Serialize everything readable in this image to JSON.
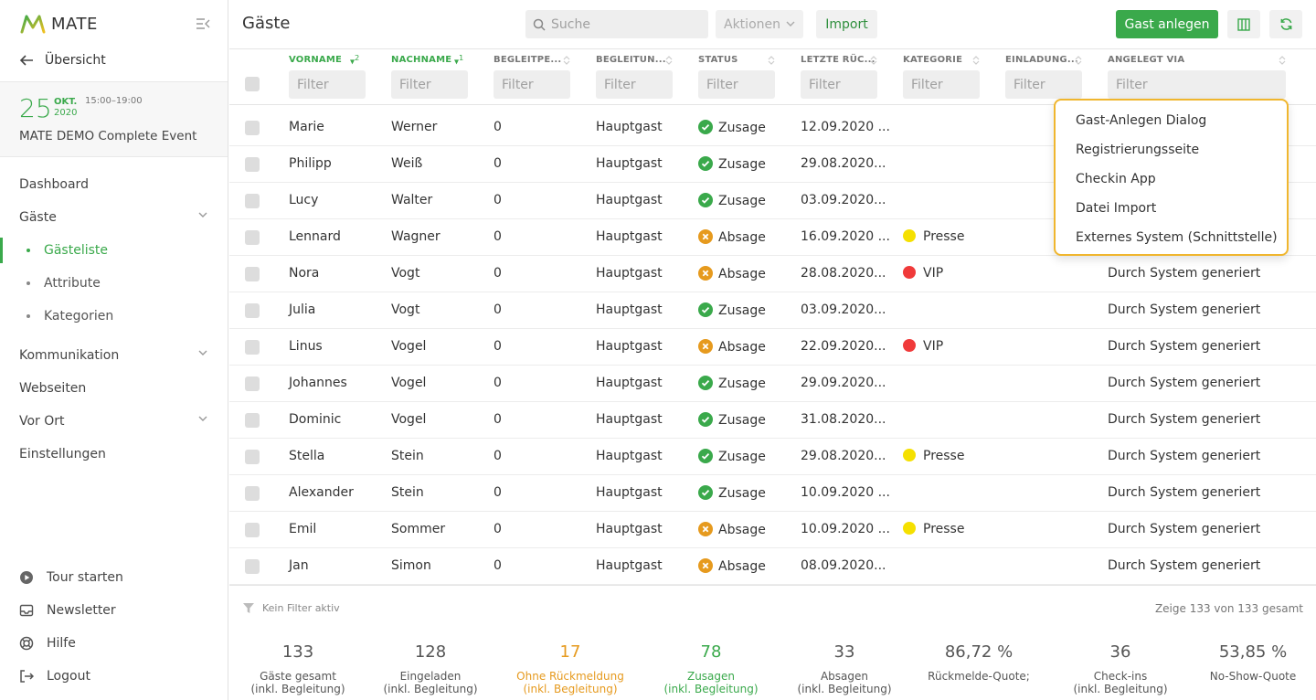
{
  "sidebar": {
    "brand": "MATE",
    "back_label": "Übersicht",
    "event": {
      "day": "25",
      "month": "OKT.",
      "year": "2020",
      "time": "15:00–19:00",
      "name": "MATE DEMO Complete Event"
    },
    "nav": {
      "dashboard": "Dashboard",
      "guests": "Gäste",
      "guestlist": "Gästeliste",
      "attributes": "Attribute",
      "categories": "Kategorien",
      "communication": "Kommunikation",
      "websites": "Webseiten",
      "onsite": "Vor Ort",
      "settings": "Einstellungen"
    },
    "bottom": {
      "tour": "Tour starten",
      "newsletter": "Newsletter",
      "help": "Hilfe",
      "logout": "Logout"
    }
  },
  "topbar": {
    "title": "Gäste",
    "search_placeholder": "Suche",
    "actions_label": "Aktionen",
    "import_label": "Import",
    "add_guest_label": "Gast anlegen"
  },
  "table": {
    "filter_placeholder": "Filter",
    "columns": {
      "firstname": "VORNAME",
      "firstname_sort": "2",
      "lastname": "NACHNAME",
      "lastname_sort": "1",
      "companions": "BEGLEITPE...",
      "companion_type": "BEGLEITUN...",
      "status": "STATUS",
      "last_response": "LETZTE RÜC...",
      "category": "KATEGORIE",
      "invitation": "EINLADUNG...",
      "created_via": "ANGELEGT VIA"
    },
    "rows": [
      {
        "first": "Marie",
        "last": "Werner",
        "companions": "0",
        "type": "Hauptgast",
        "status": "Zusage",
        "status_kind": "yes",
        "date": "12.09.2020 ...",
        "category": "",
        "cat_color": "",
        "via": ""
      },
      {
        "first": "Philipp",
        "last": "Weiß",
        "companions": "0",
        "type": "Hauptgast",
        "status": "Zusage",
        "status_kind": "yes",
        "date": "29.08.2020...",
        "category": "",
        "cat_color": "",
        "via": ""
      },
      {
        "first": "Lucy",
        "last": "Walter",
        "companions": "0",
        "type": "Hauptgast",
        "status": "Zusage",
        "status_kind": "yes",
        "date": "03.09.2020...",
        "category": "",
        "cat_color": "",
        "via": ""
      },
      {
        "first": "Lennard",
        "last": "Wagner",
        "companions": "0",
        "type": "Hauptgast",
        "status": "Absage",
        "status_kind": "no",
        "date": "16.09.2020 ...",
        "category": "Presse",
        "cat_color": "#f5e000",
        "via": ""
      },
      {
        "first": "Nora",
        "last": "Vogt",
        "companions": "0",
        "type": "Hauptgast",
        "status": "Absage",
        "status_kind": "no",
        "date": "28.08.2020...",
        "category": "VIP",
        "cat_color": "#f03a3a",
        "via": "Durch System generiert"
      },
      {
        "first": "Julia",
        "last": "Vogt",
        "companions": "0",
        "type": "Hauptgast",
        "status": "Zusage",
        "status_kind": "yes",
        "date": "03.09.2020...",
        "category": "",
        "cat_color": "",
        "via": "Durch System generiert"
      },
      {
        "first": "Linus",
        "last": "Vogel",
        "companions": "0",
        "type": "Hauptgast",
        "status": "Absage",
        "status_kind": "no",
        "date": "22.09.2020...",
        "category": "VIP",
        "cat_color": "#f03a3a",
        "via": "Durch System generiert"
      },
      {
        "first": "Johannes",
        "last": "Vogel",
        "companions": "0",
        "type": "Hauptgast",
        "status": "Zusage",
        "status_kind": "yes",
        "date": "29.09.2020...",
        "category": "",
        "cat_color": "",
        "via": "Durch System generiert"
      },
      {
        "first": "Dominic",
        "last": "Vogel",
        "companions": "0",
        "type": "Hauptgast",
        "status": "Zusage",
        "status_kind": "yes",
        "date": "31.08.2020...",
        "category": "",
        "cat_color": "",
        "via": "Durch System generiert"
      },
      {
        "first": "Stella",
        "last": "Stein",
        "companions": "0",
        "type": "Hauptgast",
        "status": "Zusage",
        "status_kind": "yes",
        "date": "29.08.2020...",
        "category": "Presse",
        "cat_color": "#f5e000",
        "via": "Durch System generiert"
      },
      {
        "first": "Alexander",
        "last": "Stein",
        "companions": "0",
        "type": "Hauptgast",
        "status": "Zusage",
        "status_kind": "yes",
        "date": "10.09.2020 ...",
        "category": "",
        "cat_color": "",
        "via": "Durch System generiert"
      },
      {
        "first": "Emil",
        "last": "Sommer",
        "companions": "0",
        "type": "Hauptgast",
        "status": "Absage",
        "status_kind": "no",
        "date": "10.09.2020 ...",
        "category": "Presse",
        "cat_color": "#f5e000",
        "via": "Durch System generiert"
      },
      {
        "first": "Jan",
        "last": "Simon",
        "companions": "0",
        "type": "Hauptgast",
        "status": "Absage",
        "status_kind": "no",
        "date": "08.09.2020...",
        "category": "",
        "cat_color": "",
        "via": "Durch System generiert"
      }
    ]
  },
  "dropdown": {
    "items": [
      "Gast-Anlegen Dialog",
      "Registrierungsseite",
      "Checkin App",
      "Datei Import",
      "Externes System (Schnittstelle)"
    ]
  },
  "footer": {
    "filter_state": "Kein Filter aktiv",
    "count_info": "Zeige 133 von 133 gesamt",
    "stats": [
      {
        "value": "133",
        "label1": "Gäste gesamt",
        "label2": "(inkl. Begleitung)",
        "tone": ""
      },
      {
        "value": "128",
        "label1": "Eingeladen",
        "label2": "(inkl. Begleitung)",
        "tone": ""
      },
      {
        "value": "17",
        "label1": "Ohne Rückmeldung",
        "label2": "(inkl. Begleitung)",
        "tone": "orange"
      },
      {
        "value": "78",
        "label1": "Zusagen",
        "label2": "(inkl. Begleitung)",
        "tone": "green"
      },
      {
        "value": "33",
        "label1": "Absagen",
        "label2": "(inkl. Begleitung)",
        "tone": ""
      },
      {
        "value": "86,72 %",
        "label1": "Rückmelde-Quote;",
        "label2": "",
        "tone": ""
      },
      {
        "value": "36",
        "label1": "Check-ins",
        "label2": "(inkl. Begleitung)",
        "tone": ""
      },
      {
        "value": "53,85 %",
        "label1": "No-Show-Quote",
        "label2": "",
        "tone": ""
      }
    ]
  },
  "colors": {
    "accent": "#3aa94b",
    "warning": "#e69a1e",
    "highlight_border": "#f0b62e"
  }
}
